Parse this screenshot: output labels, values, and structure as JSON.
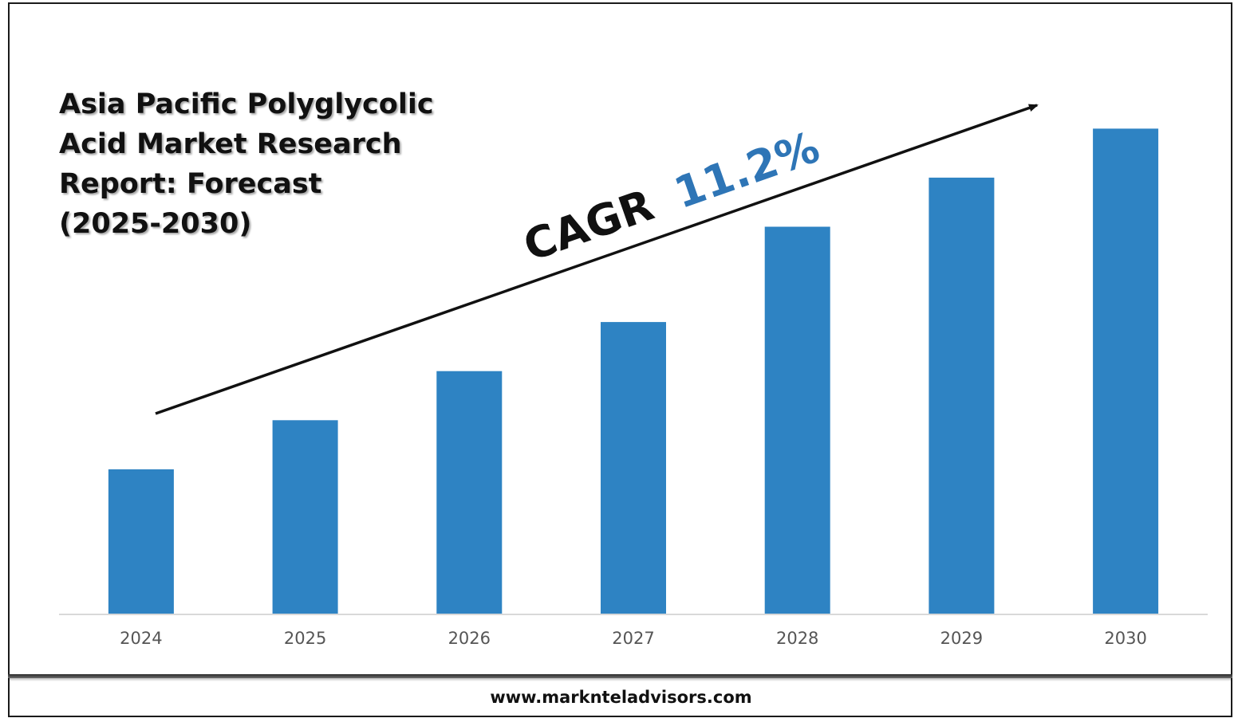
{
  "title": "Asia Pacific Polyglycolic\nAcid Market Research\nReport: Forecast\n(2025-2030)",
  "footer": {
    "url": "www.marknteladvisors.com"
  },
  "annotation": {
    "cagr_label": "CAGR",
    "cagr_value": "11.2%",
    "cagr_value_color": "#2e75b6"
  },
  "colors": {
    "bar": "#2e83c3",
    "axis": "#d9d9d9",
    "arrow": "#111111"
  },
  "chart_data": {
    "type": "bar",
    "categories": [
      "2024",
      "2025",
      "2026",
      "2027",
      "2028",
      "2029",
      "2030"
    ],
    "values": [
      1.0,
      1.34,
      1.68,
      2.02,
      2.68,
      3.02,
      3.36
    ],
    "ylim": [
      0,
      3.5
    ],
    "grid": false,
    "legend": "none",
    "xlabel": "",
    "ylabel": ""
  }
}
